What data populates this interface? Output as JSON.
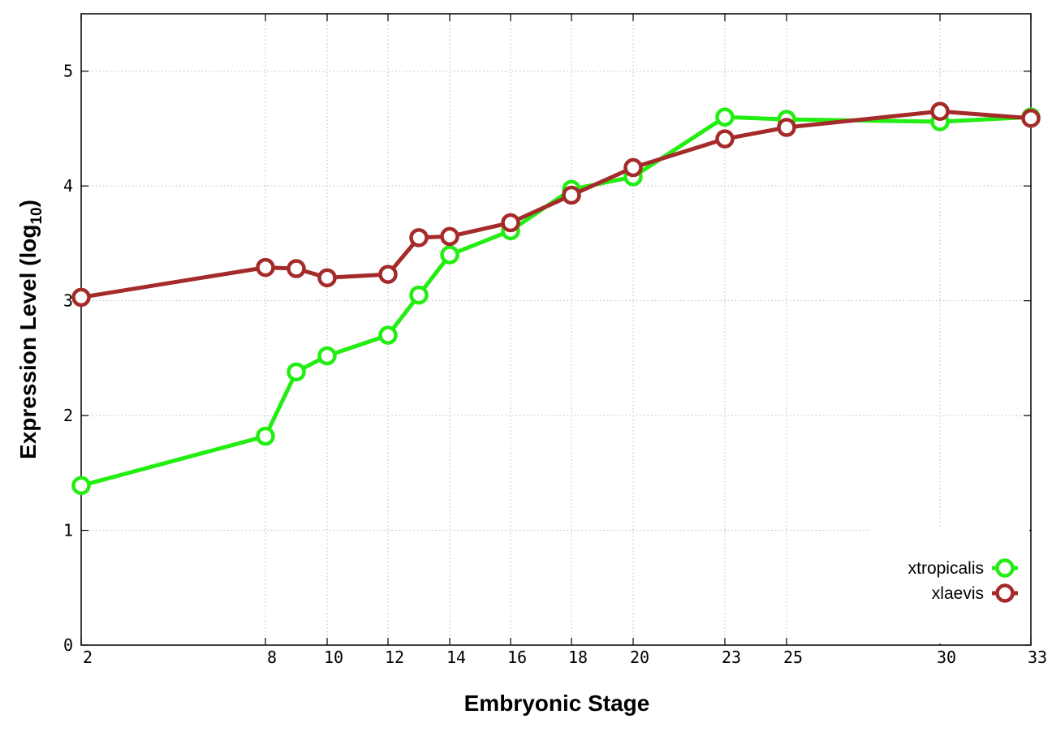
{
  "chart_data": {
    "type": "line",
    "xlabel": "Embryonic Stage",
    "ylabel_main": "Expression Level (log",
    "ylabel_sub": "10",
    "ylabel_close": ")",
    "x_categories": [
      "2",
      "8",
      "10",
      "12",
      "14",
      "16",
      "18",
      "20",
      "23",
      "25",
      "30",
      "33"
    ],
    "y_ticks": [
      "0",
      "1",
      "2",
      "3",
      "4",
      "5"
    ],
    "ylim": [
      0,
      5.5
    ],
    "grid": true,
    "legend_position": "bottom-right",
    "series": [
      {
        "name": "xtropicalis",
        "color": "#22ee11",
        "x": [
          2,
          8,
          9,
          10,
          12,
          13,
          14,
          16,
          18,
          20,
          23,
          25,
          30,
          33
        ],
        "y": [
          1.39,
          1.82,
          2.38,
          2.52,
          2.7,
          3.05,
          3.4,
          3.61,
          3.97,
          4.08,
          4.6,
          4.58,
          4.56,
          4.6
        ]
      },
      {
        "name": "xlaevis",
        "color": "#a52a2a",
        "x": [
          2,
          8,
          9,
          10,
          12,
          13,
          14,
          16,
          18,
          20,
          23,
          25,
          30,
          33
        ],
        "y": [
          3.03,
          3.29,
          3.28,
          3.2,
          3.23,
          3.55,
          3.56,
          3.68,
          3.92,
          4.16,
          4.41,
          4.51,
          4.65,
          4.59
        ]
      }
    ]
  }
}
